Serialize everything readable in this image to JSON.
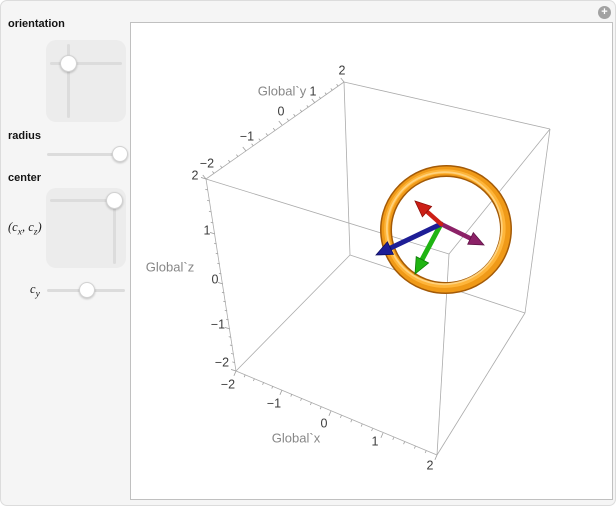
{
  "window": {
    "expand_button_glyph": "+"
  },
  "controls": {
    "orientation_label": "orientation",
    "radius_label": "radius",
    "center_label": "center",
    "center_xz_label": {
      "p1": "(c",
      "sub1": "x",
      "p2": ", c",
      "sub2": "z",
      "p3": ")"
    },
    "cy_label": {
      "base": "c",
      "sub": "y"
    }
  },
  "plot": {
    "x_axis": {
      "label": "Global`x",
      "ticks": [
        "−2",
        "−1",
        "0",
        "1",
        "2"
      ]
    },
    "y_axis": {
      "label": "Global`y",
      "ticks": [
        "−2",
        "−1",
        "0",
        "1",
        "2"
      ]
    },
    "z_axis": {
      "label": "Global`z",
      "ticks": [
        "2",
        "1",
        "0",
        "−1",
        "−2"
      ]
    }
  },
  "chart_data": {
    "type": "3d-graphics",
    "box_range": {
      "x": [
        -2,
        2
      ],
      "y": [
        -2,
        2
      ],
      "z": [
        -2,
        2
      ]
    },
    "objects": [
      {
        "name": "torus-ring",
        "color": "#f09a18"
      },
      {
        "name": "arrow",
        "color": "#cc1f16",
        "direction": "up-left"
      },
      {
        "name": "arrow",
        "color": "#8c2167",
        "direction": "down-right"
      },
      {
        "name": "arrow",
        "color": "#1e1e96",
        "direction": "down-left"
      },
      {
        "name": "arrow",
        "color": "#1fb412",
        "direction": "down"
      }
    ]
  },
  "colors": {
    "torus": "#f09a18",
    "arrow_red": "#cc1f16",
    "arrow_green": "#1fb412",
    "arrow_blue": "#1e1e96",
    "arrow_purple": "#8c2167",
    "box_edge": "#ababab",
    "panel_bg": "#f5f5f5"
  }
}
